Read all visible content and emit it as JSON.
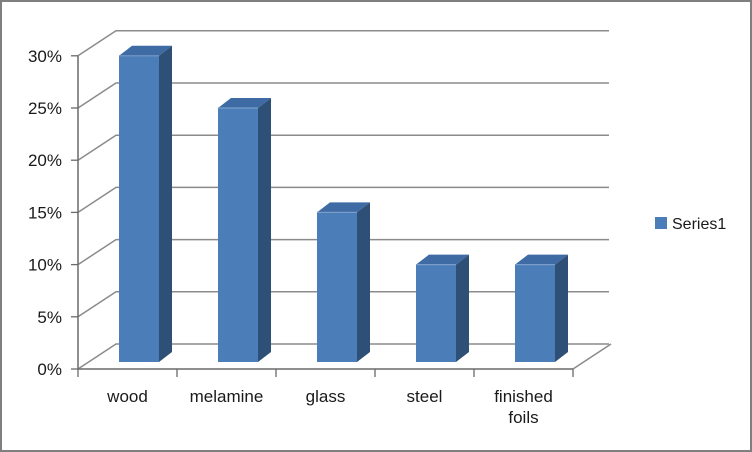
{
  "window": {
    "background": "#FFFFFF",
    "border_color": "#7F7F7F"
  },
  "chart_data": {
    "type": "bar",
    "projection": "3d-column",
    "title": "",
    "xlabel": "",
    "ylabel": "",
    "categories": [
      "wood",
      "melamine",
      "glass",
      "steel",
      "finished foils"
    ],
    "series": [
      {
        "name": "Series1",
        "values": [
          30,
          25,
          15,
          10,
          10
        ],
        "unit": "%"
      }
    ],
    "ylim": [
      0,
      30
    ],
    "ytick_step": 5,
    "ytick_labels": [
      "0%",
      "5%",
      "10%",
      "15%",
      "20%",
      "25%",
      "30%"
    ],
    "grid": true,
    "legend": {
      "position": "middle-right",
      "entries": [
        {
          "label": "Series1",
          "color": "#4B7DB8"
        }
      ]
    },
    "colors": {
      "bar_front": "#4B7DB8",
      "bar_top": "#3E6BA4",
      "bar_side": "#2E5077",
      "bar_bevel": "#7A9CC9",
      "gridline": "#8B8B8B",
      "axis": "#6A6A6A",
      "text": "#1A1A1A"
    }
  }
}
